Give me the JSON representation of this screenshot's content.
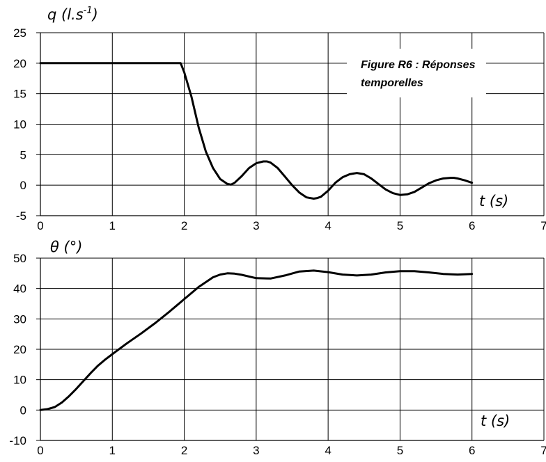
{
  "chart_data": [
    {
      "type": "line",
      "ylabel": "q (l.s-1)",
      "ylabel_parts": [
        "q (l.s",
        "-1",
        ")"
      ],
      "xlabel": "t (s)",
      "annotation_lines": [
        "Figure R6 : Réponses",
        "temporelles"
      ],
      "xlim": [
        0,
        7
      ],
      "ylim": [
        -5,
        25
      ],
      "x_ticks": [
        "0",
        "1",
        "2",
        "3",
        "4",
        "5",
        "6",
        "7"
      ],
      "y_ticks": [
        "-5",
        "0",
        "5",
        "10",
        "15",
        "20",
        "25"
      ],
      "grid": true,
      "series": [
        {
          "color": "#000000",
          "x": [
            0,
            0.5,
            1.0,
            1.5,
            1.9,
            1.95,
            2.0,
            2.1,
            2.2,
            2.3,
            2.4,
            2.5,
            2.6,
            2.65,
            2.7,
            2.8,
            2.9,
            3.0,
            3.1,
            3.15,
            3.2,
            3.3,
            3.4,
            3.5,
            3.6,
            3.7,
            3.8,
            3.85,
            3.9,
            4.0,
            4.1,
            4.2,
            4.3,
            4.4,
            4.45,
            4.5,
            4.6,
            4.7,
            4.8,
            4.9,
            5.0,
            5.1,
            5.2,
            5.3,
            5.4,
            5.5,
            5.6,
            5.7,
            5.75,
            5.8,
            5.9,
            6.0
          ],
          "y": [
            20,
            20,
            20,
            20,
            20,
            20,
            18.5,
            14.5,
            9.5,
            5.5,
            2.8,
            1.0,
            0.2,
            0.1,
            0.4,
            1.5,
            2.8,
            3.6,
            3.9,
            3.9,
            3.7,
            2.8,
            1.4,
            0.0,
            -1.2,
            -2.0,
            -2.2,
            -2.1,
            -1.9,
            -0.9,
            0.4,
            1.3,
            1.8,
            2.0,
            1.9,
            1.8,
            1.1,
            0.2,
            -0.7,
            -1.3,
            -1.6,
            -1.5,
            -1.1,
            -0.4,
            0.3,
            0.8,
            1.1,
            1.2,
            1.2,
            1.1,
            0.8,
            0.4
          ]
        }
      ]
    },
    {
      "type": "line",
      "ylabel": "θ (°)",
      "xlabel": "t (s)",
      "xlim": [
        0,
        7
      ],
      "ylim": [
        -10,
        50
      ],
      "x_ticks": [
        "0",
        "1",
        "2",
        "3",
        "4",
        "5",
        "6",
        "7"
      ],
      "y_ticks": [
        "-10",
        "0",
        "10",
        "20",
        "30",
        "40",
        "50"
      ],
      "grid": true,
      "series": [
        {
          "color": "#000000",
          "x": [
            0,
            0.1,
            0.2,
            0.3,
            0.4,
            0.5,
            0.6,
            0.7,
            0.8,
            0.9,
            1.0,
            1.2,
            1.4,
            1.6,
            1.8,
            2.0,
            2.2,
            2.4,
            2.5,
            2.6,
            2.7,
            2.8,
            3.0,
            3.2,
            3.4,
            3.6,
            3.8,
            4.0,
            4.2,
            4.4,
            4.6,
            4.8,
            5.0,
            5.2,
            5.4,
            5.6,
            5.8,
            6.0
          ],
          "y": [
            0,
            0.3,
            1.0,
            2.5,
            4.6,
            7.0,
            9.6,
            12.2,
            14.6,
            16.6,
            18.4,
            21.9,
            25.2,
            28.7,
            32.5,
            36.5,
            40.5,
            43.7,
            44.6,
            45.0,
            44.9,
            44.5,
            43.4,
            43.3,
            44.3,
            45.6,
            45.9,
            45.4,
            44.6,
            44.3,
            44.6,
            45.3,
            45.7,
            45.7,
            45.3,
            44.8,
            44.6,
            44.8
          ]
        }
      ]
    }
  ]
}
